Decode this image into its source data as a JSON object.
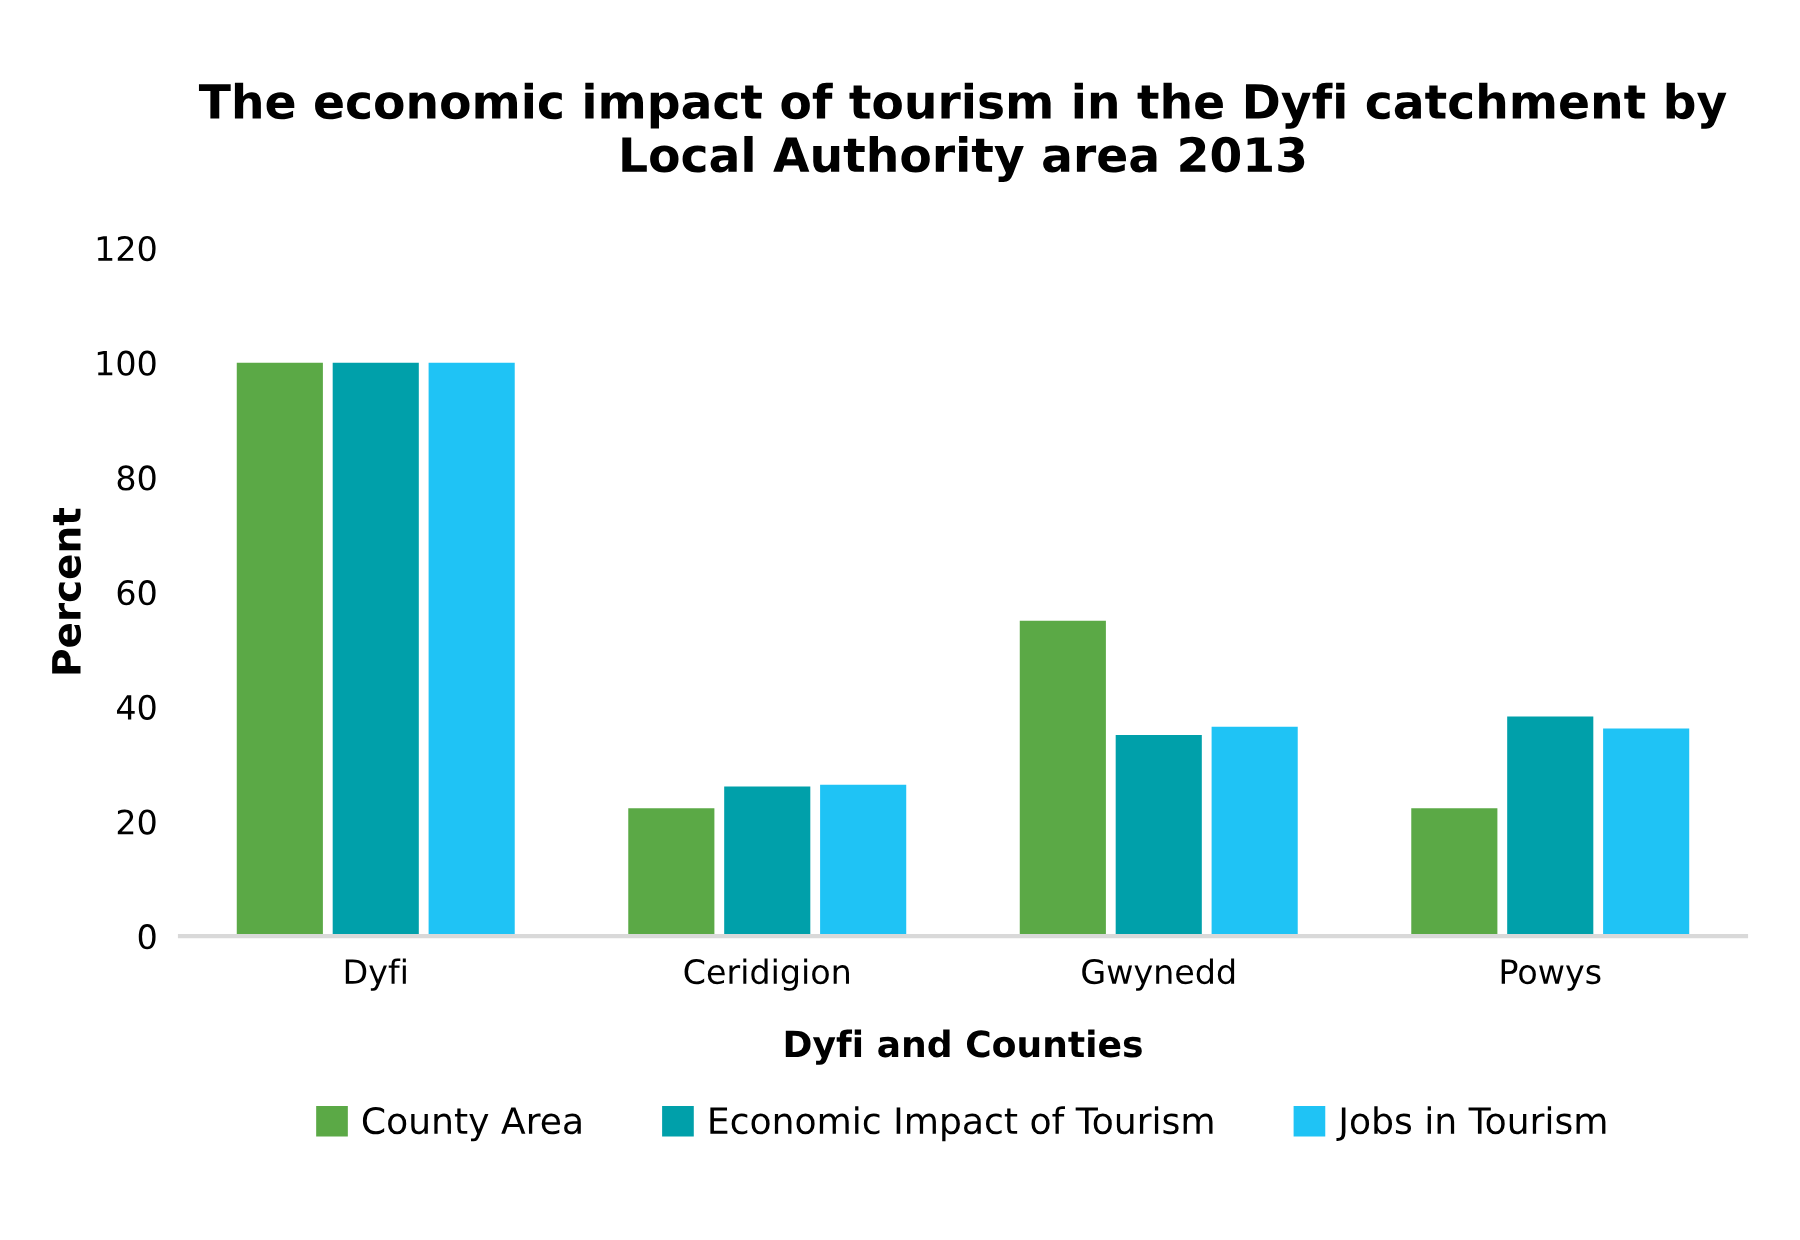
{
  "chart_data": {
    "type": "bar",
    "title": "The economic impact of tourism in the Dyfi catchment by Local Authority area 2013",
    "xlabel": "Dyfi and Counties",
    "ylabel": "Percent",
    "categories": [
      "Dyfi",
      "Ceridigion",
      "Gwynedd",
      "Powys"
    ],
    "series": [
      {
        "name": "County Area",
        "color": "#5ba946",
        "values": [
          100,
          22.3,
          55.0,
          22.3
        ]
      },
      {
        "name": "Economic Impact of Tourism",
        "color": "#00a0aa",
        "values": [
          100,
          26.1,
          35.1,
          38.3
        ]
      },
      {
        "name": "Jobs in Tourism",
        "color": "#1fc3f5",
        "values": [
          100,
          26.4,
          36.5,
          36.2
        ]
      }
    ],
    "ylim": [
      0,
      120
    ],
    "yticks": [
      0,
      20,
      40,
      60,
      80,
      100,
      120
    ],
    "grid": false,
    "legend": "bottom"
  }
}
